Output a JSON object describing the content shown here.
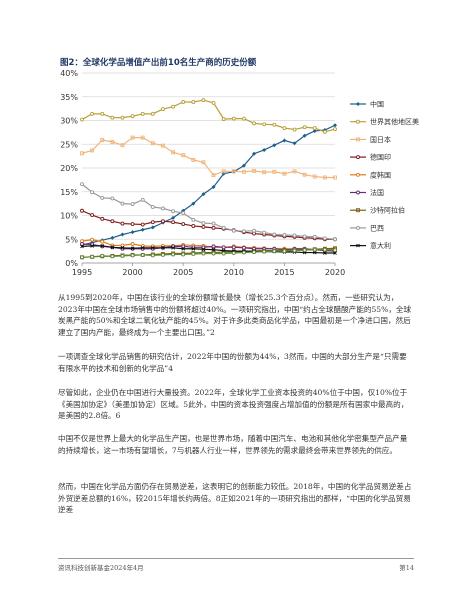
{
  "figure": {
    "title": "图2：全球化学品增值产出前10名生产商的历史份额"
  },
  "chart_data": {
    "type": "line",
    "title": "图2：全球化学品增值产出前10名生产商的历史份额",
    "xlabel": "",
    "ylabel": "",
    "x": [
      1995,
      1996,
      1997,
      1998,
      1999,
      2000,
      2001,
      2002,
      2003,
      2004,
      2005,
      2006,
      2007,
      2008,
      2009,
      2010,
      2011,
      2012,
      2013,
      2014,
      2015,
      2016,
      2017,
      2018,
      2019,
      2020
    ],
    "xlim": [
      1995,
      2020
    ],
    "ylim": [
      0,
      40
    ],
    "x_ticks": [
      "1995",
      "2000",
      "2005",
      "2010",
      "2015",
      "2020"
    ],
    "y_ticks": [
      "0%",
      "5%",
      "10%",
      "15%",
      "20%",
      "25%",
      "30%",
      "35%",
      "40%"
    ],
    "grid": true,
    "legend_position": "right",
    "series": [
      {
        "name": "中国",
        "color": "#1f5f8b",
        "marker": "diamond",
        "values": [
          3.8,
          4.3,
          4.8,
          5.3,
          6,
          6.5,
          7,
          7.5,
          8.5,
          9.5,
          11,
          12.5,
          14.5,
          16,
          18.8,
          19.2,
          20.5,
          23,
          23.8,
          24.8,
          25.8,
          25.2,
          26.8,
          27.8,
          28,
          29
        ]
      },
      {
        "name": "世界其他地区美",
        "color": "#b8a038",
        "marker": "circle",
        "values": [
          30.2,
          31.4,
          31.4,
          30.6,
          30.6,
          30.9,
          31.4,
          31.4,
          32.4,
          32.9,
          33.9,
          33.9,
          34.3,
          33.7,
          30.3,
          30.4,
          30.4,
          29.4,
          29.2,
          29.1,
          28.4,
          28.1,
          28.6,
          28.4,
          27.6,
          28.2
        ]
      },
      {
        "name": "国日本",
        "color": "#f0b57a",
        "marker": "square",
        "values": [
          23.1,
          23.7,
          25.9,
          25.5,
          24.8,
          26.4,
          26.4,
          25.2,
          24.7,
          23.3,
          22.7,
          21.7,
          21.2,
          18.5,
          19.3,
          19.3,
          19.2,
          19.4,
          19.1,
          19.2,
          18.8,
          19.3,
          18.6,
          18.2,
          18,
          18
        ]
      },
      {
        "name": "德国印",
        "color": "#7f1d1d",
        "marker": "circle",
        "values": [
          11,
          10.1,
          9.3,
          8.8,
          8.3,
          8.2,
          8.1,
          8.6,
          8.8,
          8.6,
          8.2,
          7.8,
          7.6,
          7.4,
          7.2,
          6.9,
          6.5,
          6.2,
          6,
          5.8,
          5.6,
          5.5,
          5.3,
          5.2,
          5,
          5
        ]
      },
      {
        "name": "度韩国",
        "color": "#e07a1f",
        "marker": "circle",
        "values": [
          4.6,
          4.9,
          4.5,
          3.7,
          3.7,
          4,
          3.6,
          3.5,
          3.6,
          3.6,
          3.8,
          3.7,
          3.6,
          3.3,
          3.3,
          3.5,
          3.3,
          3.2,
          3.1,
          3,
          3,
          2.9,
          2.8,
          2.8,
          2.9,
          3
        ]
      },
      {
        "name": "法国",
        "color": "#6a2c7a",
        "marker": "circle",
        "values": [
          4,
          3.9,
          3.5,
          3.3,
          3,
          3,
          3,
          3,
          3.2,
          3.5,
          3.5,
          3.3,
          3.3,
          3.5,
          3.3,
          3.3,
          3.2,
          3,
          3,
          3,
          2.8,
          3,
          3,
          2.8,
          2.6,
          2.5
        ]
      },
      {
        "name": "沙特阿拉伯",
        "color": "#7a5f10",
        "marker": "square",
        "values": [
          1.2,
          1.3,
          1.4,
          1.5,
          1.6,
          1.7,
          1.7,
          1.8,
          1.9,
          2,
          2,
          2.1,
          2.2,
          2.2,
          2.3,
          2.4,
          2.4,
          2.5,
          2.6,
          2.6,
          2.7,
          2.8,
          2.8,
          2.9,
          3,
          3.1
        ]
      },
      {
        "name": "巴西",
        "color": "#9a9a9a",
        "marker": "circle",
        "values": [
          16.6,
          14.9,
          13.7,
          13.6,
          12.5,
          12.4,
          13.3,
          11.8,
          11.5,
          10.9,
          10.5,
          9.1,
          8.4,
          8.3,
          7.4,
          6.8,
          6.7,
          6.8,
          6.4,
          6,
          5.9,
          5.8,
          5.6,
          5.5,
          5.2,
          5
        ]
      },
      {
        "name": "意大利",
        "color": "#111111",
        "marker": "x",
        "values": [
          3.5,
          3.6,
          3.6,
          3.3,
          3.2,
          3.1,
          3.2,
          3.2,
          3.2,
          3.2,
          3,
          3,
          2.9,
          2.8,
          2.6,
          2.5,
          2.5,
          2.5,
          2.4,
          2.4,
          2.3,
          2.3,
          2.2,
          2.2,
          2.1,
          2.1
        ]
      },
      {
        "name": "",
        "color": "#5c8a3a",
        "marker": "circle",
        "values": [
          1.2,
          1.3,
          1.5,
          1.4,
          1.5,
          1.6,
          1.7,
          1.6,
          1.7,
          1.8,
          1.8,
          1.9,
          2,
          2,
          2,
          2.1,
          2.2,
          2.3,
          2.4,
          2.5,
          2.5,
          2.6,
          2.7,
          2.8,
          2.8,
          2.7
        ]
      }
    ]
  },
  "paragraphs": [
    "从1995到2020年，中国在该行业的全球份额增长最快（增长25.3个百分点）。然而，一些研究认为，2023年中国在全球市场销售中的份额将超过40%。一项研究指出，中国“约占全球醋酸产能的55%，全球炭黑产能的50%和全球二氧化钛产能的45%。对于许多此类商品化学品，中国最初是一个净进口国，然后建立了国内产能，最终成为一个主要出口国。”2",
    "一项调查全球化学品销售的研究估计，2022年中国的份额为44%，3然而，中国的大部分生产是“只需要有限水平的技术和创新的化学品”4",
    "尽管如此，企业仍在中国进行大量投资。2022年，全球化学工业资本投资的40%位于中国，仅10%位于《美国加协定》（美墨加协定）区域。5此外，中国的资本投资强度占增加值的份额是所有国家中最高的，是美国的2.8倍。6",
    "中国不仅是世界上最大的化学品生产国，也是世界市场，随着中国汽车、电池和其他化学密集型产品产量的持续增长，这一市场有望增长，7与机器人行业一样，世界领先的需求最终会带来世界领先的供应。",
    "然而，中国在化学品方面仍存在贸易逆差，这表明它的创新能力较低。2018年，中国的化学品贸易逆差占外贸逆差总额的16%，较2015年增长约两倍。8正如2021年的一项研究指出的那样，“中国的化学品贸易逆差"
  ],
  "footer": {
    "left": "资讯科技创新基金2024年4月",
    "right": "第14"
  }
}
